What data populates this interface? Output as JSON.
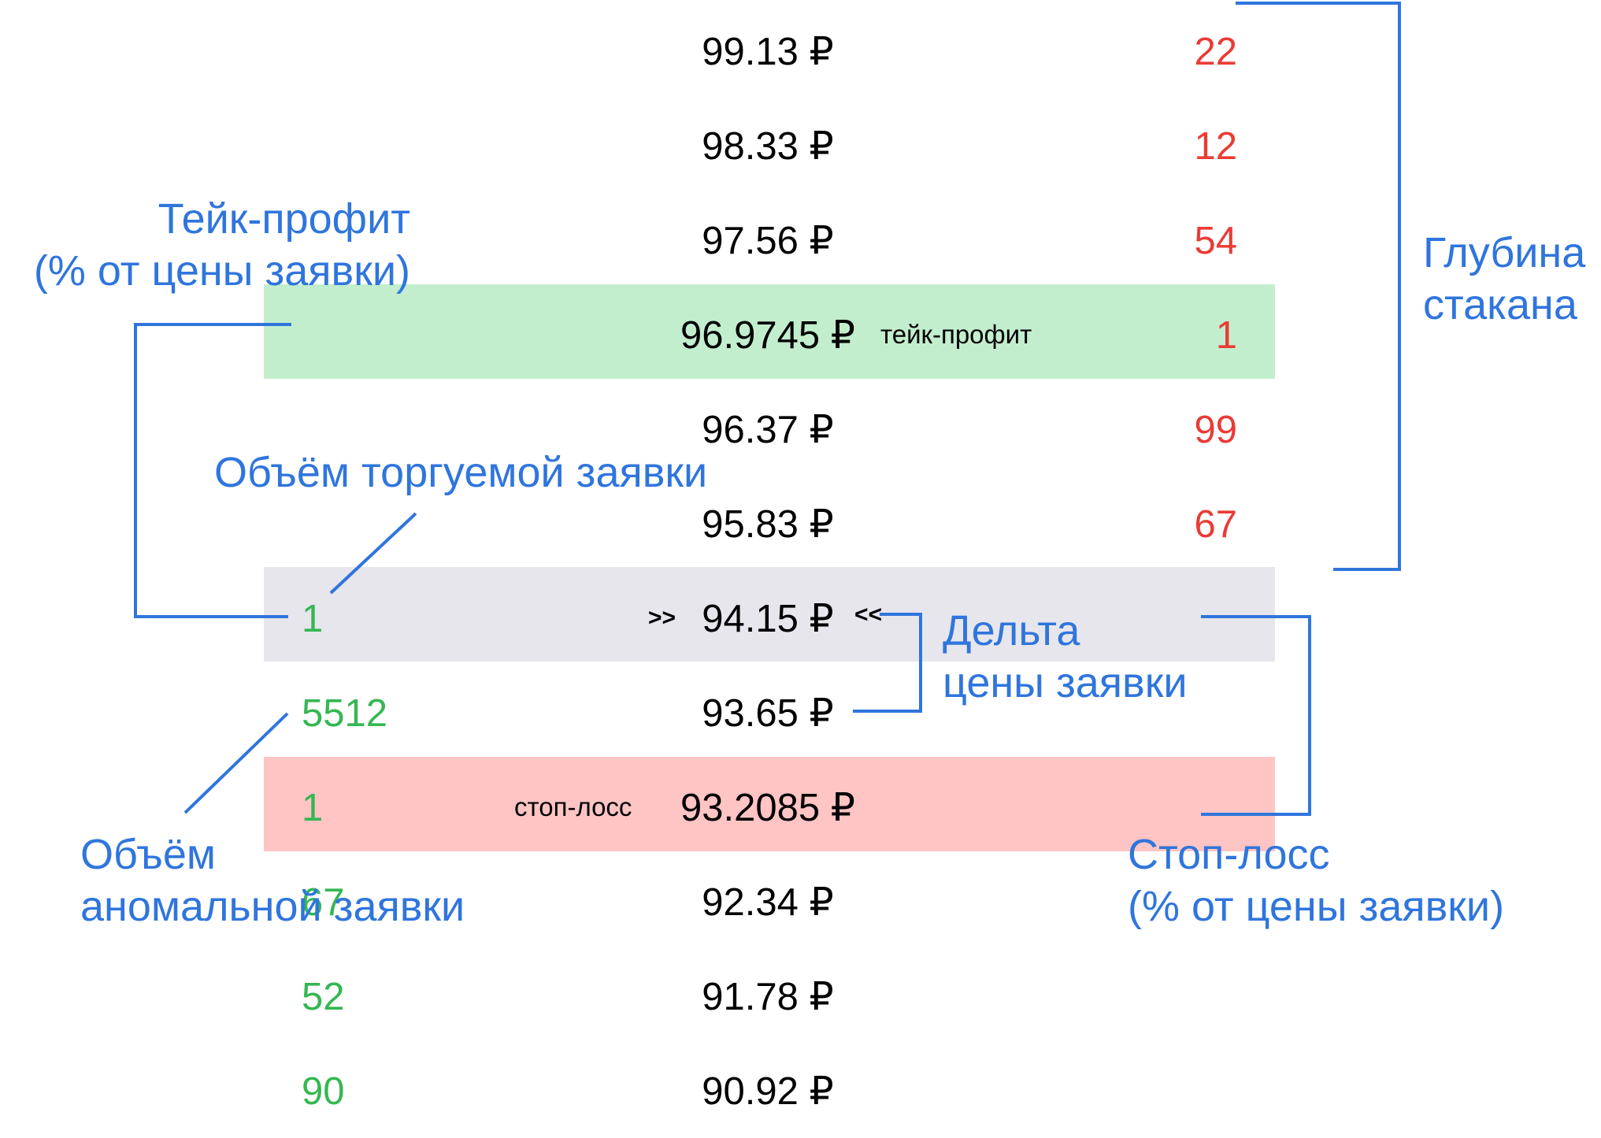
{
  "colors": {
    "annotation": "#2f75dd",
    "ask": "#ea3b35",
    "bid": "#35b752",
    "take_profit_band": "#c3eece",
    "current_band": "#e6e6ec",
    "stop_loss_band": "#ffc4c4"
  },
  "rows": [
    {
      "price": "99.13 ₽",
      "ask": "22",
      "bid": ""
    },
    {
      "price": "98.33 ₽",
      "ask": "12",
      "bid": ""
    },
    {
      "price": "97.56 ₽",
      "ask": "54",
      "bid": ""
    },
    {
      "price": "96.9745 ₽",
      "ask": "1",
      "bid": ""
    },
    {
      "price": "96.37 ₽",
      "ask": "99",
      "bid": ""
    },
    {
      "price": "95.83 ₽",
      "ask": "67",
      "bid": ""
    },
    {
      "price": "94.15 ₽",
      "ask": "",
      "bid": "1"
    },
    {
      "price": "93.65 ₽",
      "ask": "",
      "bid": "5512"
    },
    {
      "price": "93.2085 ₽",
      "ask": "",
      "bid": "1"
    },
    {
      "price": "92.34 ₽",
      "ask": "",
      "bid": "67"
    },
    {
      "price": "91.78 ₽",
      "ask": "",
      "bid": "52"
    },
    {
      "price": "90.92 ₽",
      "ask": "",
      "bid": "90"
    }
  ],
  "tags": {
    "take_profit": "тейк-профит",
    "stop_loss": "стоп-лосс"
  },
  "current_price_markers": {
    "left": ">>",
    "right": "<<"
  },
  "annotations": {
    "take_profit": {
      "line1": "Тейк-профит",
      "line2": "(% от цены заявки)"
    },
    "order_volume": {
      "line1": "Объём торгуемой заявки"
    },
    "anomalous_volume": {
      "line1": "Объём",
      "line2": "аномальной заявки"
    },
    "order_book_depth": {
      "line1": "Глубина",
      "line2": "стакана"
    },
    "price_delta": {
      "line1": "Дельта",
      "line2": "цены заявки"
    },
    "stop_loss": {
      "line1": "Стоп-лосс",
      "line2": "(% от цены заявки)"
    }
  }
}
